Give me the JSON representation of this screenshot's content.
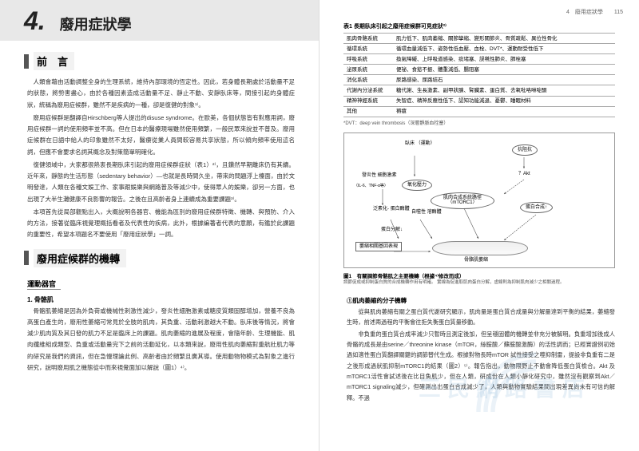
{
  "left": {
    "chapter_num": "4.",
    "chapter_title": "廢用症狀學",
    "section1": "前　言",
    "para1": "人類會藉由活動調整全身的生理系統，維持內部環境的恆定性。因此，若身體長期處於活動量不足的狀態，將勢害盡心，由於各種因素造成活動量不足、靜止不動、安靜臥床等，間接引起的身體症狀，統稱為廢用症候群，雖然不是疾病的一種，卻是復健的對象¹⁾。",
    "para2": "廢用症候群是翻譯自Hirschberg等人提出的disuse syndrome。在歐美，各個狀態皆有對應用詞，廢用症候群一詞的使用頻率並不高。但在日本的醫療現場雖然使用頻繁，一般民眾來說並不普及。廢用症候群在日語中給人的印象雖然不太好，醫療從業人員間較容易共享狀態，所以傾向頻率使用這名詞，但應不會要求名詞其概念及對策簡單明確化。",
    "para3": "復健領域中，大家都很熱衷長期臥床引起的廢用症候群症狀（表1）²⁾，且鑽然早期離床仍有其續。近年來，靜態的生活形態（sedentary behavior）—也就是長時間久坐，帶來的問題浮上檯面，由於文明發達，人類在各種文娛工作、家事跟娛樂與網路普及等減少中，使得眾人的娛樂，卻另一方面，也出現了大半生灘健康不良影響的報告。之後在且高齡者身上連續成為重要課題³⁾。",
    "para4": "本項首先從局部觀點出入，大概說明各器官、機能為區別的廢用症候群特徵、機轉、與預防、介入的方法，接著從臨床視覺理概括看者及代表性的疾病，此外，根據編著者代表的意願，有鑑於此課題的重要性，希望本項題名不要使用「廢用症狀學」一詞。",
    "section2": "廢用症候群的機轉",
    "subheading": "運動器官",
    "sub2": "1. 骨骼肌",
    "para5": "骨骼肌萎縮是因為外負荷或機械性刺激性減少，發炎性細胞激素或糖皮質類固醇增加，營養不良為高蛋白產生的，廢用性萎縮可常見於全肢的肌肉，其負重、活動刺激越大不動。臥床後等情況，將會減少肌肉質及其日發的肌力不足是臨床上的課題。肌肉萎縮的進展及程度，會隨年齡、生理機能、肌肉纖維組成類型、負重或活動量完下之前的活動延化，以本類來說，廢用性肌肉萎縮對重航壯肌力等的研究是我們的資訊，但在急慢理論此例、高齡者由於頻繁且廣其導。使用動物物模式為對象之進行研究，說明廢用肌之機態從中而來視覺面加以解說（圖1）⁴⁾。"
  },
  "right": {
    "page_header": "4　廢用症狀學　　115",
    "table_caption": "表1 長期臥床引起之廢用症候群可見症狀²⁾",
    "table_rows": [
      [
        "肌肉骨骼系統",
        "肌力低下、肌肉萎縮、關節攣縮、變形關節炎、骨質疏鬆、異位性骨化"
      ],
      [
        "循環系統",
        "循環血量減低下、姿勢性低血壓、血栓、DVT*、運動耐受性低下"
      ],
      [
        "呼吸系統",
        "換氣障礙、上呼吸道感染、痰堵塞、誤嚥性肺炎、肺栓塞"
      ],
      [
        "泌尿系統",
        "便祕、食慾不振、體重減低、腸阻塞"
      ],
      [
        "消化系統",
        "尿路感染、尿路結石"
      ],
      [
        "代謝內分泌系統",
        "糖代謝、生長激素、副甲狀腺、腎臟素、蛋白質、去氧吡咯啉啶酮"
      ],
      [
        "精神神經系統",
        "失智症、精神反應性低下、認知功能減退、憂鬱、睡眠材料"
      ],
      [
        "其他",
        "褥瘡"
      ]
    ],
    "table_note": "*DVT：deep vein thrombosis（深層靜脈血栓塞）",
    "figure": {
      "nodes": {
        "bedrest": "臥床\n（運動）",
        "resist": "抗阻抗",
        "inflam": "發炎性\n細胞激素",
        "il6": "（IL-6、TNF-α等）",
        "oxid": "氧化壓力",
        "akt": "？Akt",
        "mtor": "肌肉合成系統路徑\n（mTORC1）",
        "ub": "泛素化-\n蛋白酶體",
        "auto": "自噬性\n溶酶體",
        "protsyn": "蛋白合成↑",
        "protdeg": "蛋白分解↓",
        "box1": "萎縮相關基因表現",
        "muscle": "骨骼肌萎縮"
      },
      "caption": "圖1　有關調節骨骼肌之主要機轉（根據⁴⁾修改而成）",
      "caption_sub": "調節促成或抑制蛋白質的合成機轉作用有明確。\n實線為促進取肌肉蛋白分解，虛線則為抑制肌肉減少之相關過程。"
    },
    "circled_heading": "①肌肉萎縮的分子機轉",
    "para1": "　從與肌肉萎縮有關之蛋白質代謝研究顯示，肌肉量是蛋白質合成量與分解量達到平衡的結果，萎縮發生時，前述兩過程的平衡會往拒失衡蛋白質量移動。",
    "para2": "　非負重的蛋白質合成率減少只暫時且測定後加，但呈穩固體的機轉並非充分被解明。負重增加後成人骨骼的成長是由serine／threonine kinase（mTOR，絲胺酸／蘇胺酸激酶）的活性調而；已經實證例初始過如適性蛋白質翻譯關鍵的調節替代生成。根據對物長時mTOR 試性接受之噬抑制雷，提設非負重有二是之後形成過狀肌抑制mTORC1的結果（圖2）⁵⁾。報告指出，動物限野止不動會降低蛋白質檢合。Akt 及mTORC1活性會試述後在比目魚肌少，但在人類，研成份在人類小靜化研究中，雖然沒有觀察到Akt／mTORC1 signaling減少，但確測出出蛋白合成減少了，人類與動物實驗結果間出現差異尚未有可信的解釋。不過"
  },
  "watermark": "三民網路書店"
}
